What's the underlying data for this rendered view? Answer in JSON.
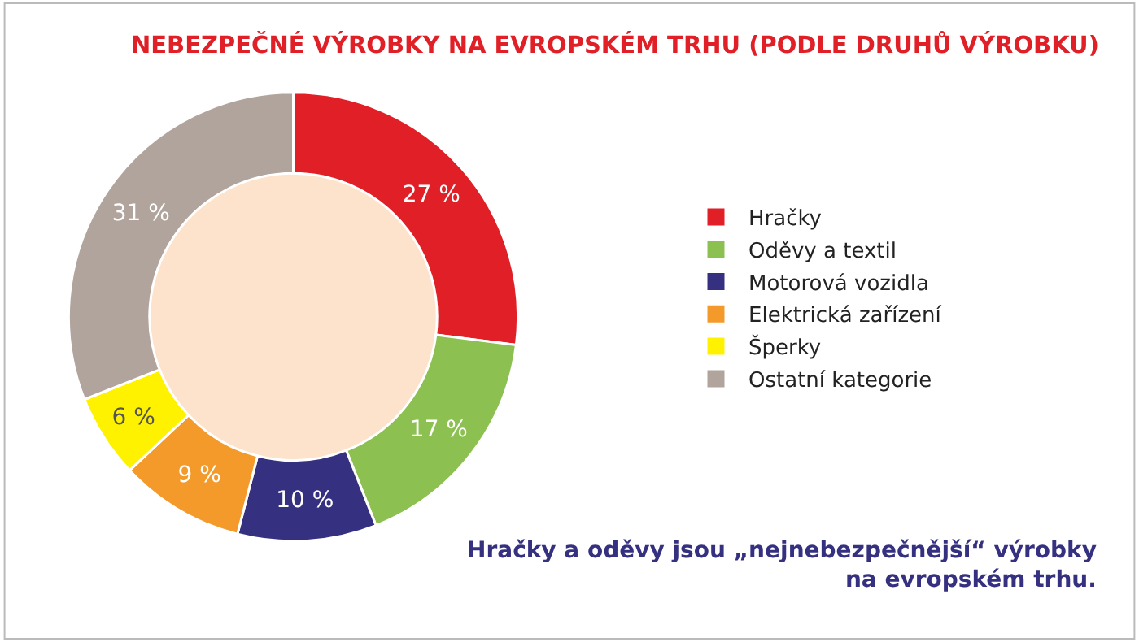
{
  "chart_data": {
    "type": "donut",
    "title": "NEBEZPEČNÉ VÝROBKY NA EVROPSKÉM TRHU (PODLE DRUHŮ VÝROBKU)",
    "categories": [
      "Hračky",
      "Oděvy a textil",
      "Motorová vozidla",
      "Elektrická zařízení",
      "Šperky",
      "Ostatní kategorie"
    ],
    "values": [
      27,
      17,
      10,
      9,
      6,
      31
    ],
    "value_labels": [
      "27 %",
      "17 %",
      "10 %",
      "9 %",
      "6 %",
      "31 %"
    ],
    "colors": [
      "#e01f26",
      "#8cc152",
      "#35307f",
      "#f39a2b",
      "#fff200",
      "#b1a49d"
    ],
    "legend": "right",
    "annotations": [
      "Hračky a oděvy jsou „nejnebezpečnější“ výrobky na evropském trhu."
    ]
  }
}
